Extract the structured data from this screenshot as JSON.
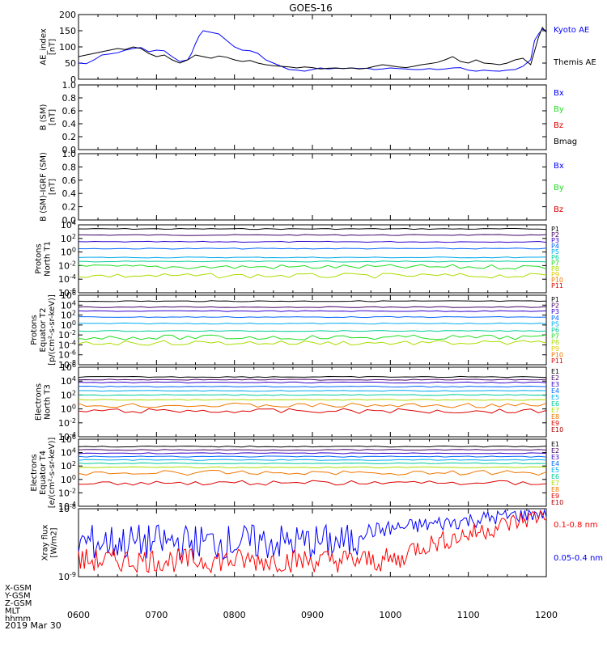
{
  "title": "GOES-16",
  "x_axis": {
    "ticks": [
      "0600",
      "0700",
      "0800",
      "0900",
      "1000",
      "1100",
      "1200"
    ],
    "footer_labels": [
      "X-GSM",
      "Y-GSM",
      "Z-GSM",
      "MLT",
      "hhmm"
    ],
    "date": "2019 Mar 30"
  },
  "colors": {
    "black": "#000000",
    "blue": "#0000ff",
    "green": "#22dd22",
    "red": "#dd0000",
    "p": [
      "#000000",
      "#440066",
      "#3300cc",
      "#0066ff",
      "#00aaee",
      "#00cc99",
      "#22dd22",
      "#aadd00",
      "#ddcc00",
      "#ee7700",
      "#dd0000"
    ]
  },
  "chart_data": [
    {
      "type": "line",
      "panel": "ae",
      "ylabel": "AE_index\n[nT]",
      "ylim": [
        0,
        200
      ],
      "yticks": [
        "0",
        "50",
        "100",
        "150",
        "200"
      ],
      "x_start": 600,
      "x_end": 1200,
      "series": [
        {
          "name": "Kyoto AE",
          "color": "#0000ff",
          "x": [
            600,
            610,
            620,
            630,
            640,
            650,
            660,
            670,
            680,
            690,
            700,
            710,
            720,
            730,
            740,
            745,
            750,
            755,
            760,
            770,
            780,
            790,
            800,
            810,
            820,
            830,
            840,
            850,
            860,
            870,
            880,
            890,
            900,
            910,
            920,
            930,
            940,
            950,
            960,
            970,
            980,
            990,
            1000,
            1010,
            1020,
            1030,
            1040,
            1050,
            1060,
            1070,
            1080,
            1090,
            1100,
            1110,
            1120,
            1130,
            1140,
            1150,
            1160,
            1170,
            1180,
            1185,
            1190,
            1195,
            1200
          ],
          "values": [
            50,
            48,
            60,
            75,
            78,
            82,
            90,
            95,
            98,
            85,
            90,
            88,
            70,
            55,
            60,
            80,
            110,
            135,
            150,
            145,
            140,
            120,
            100,
            90,
            88,
            80,
            60,
            50,
            40,
            30,
            28,
            25,
            30,
            35,
            32,
            34,
            33,
            35,
            33,
            34,
            30,
            32,
            35,
            33,
            32,
            30,
            30,
            33,
            30,
            32,
            35,
            36,
            28,
            25,
            28,
            26,
            25,
            28,
            30,
            40,
            60,
            120,
            140,
            155,
            150
          ]
        },
        {
          "name": "Themis AE",
          "color": "#000000",
          "x": [
            600,
            610,
            620,
            630,
            640,
            650,
            660,
            670,
            680,
            690,
            700,
            710,
            720,
            730,
            740,
            750,
            760,
            770,
            780,
            790,
            800,
            810,
            820,
            830,
            840,
            850,
            860,
            870,
            880,
            890,
            900,
            910,
            920,
            930,
            940,
            950,
            960,
            970,
            980,
            990,
            1000,
            1010,
            1020,
            1030,
            1040,
            1050,
            1060,
            1070,
            1080,
            1090,
            1100,
            1110,
            1120,
            1130,
            1140,
            1150,
            1160,
            1170,
            1180,
            1190,
            1195,
            1200
          ],
          "values": [
            70,
            75,
            80,
            85,
            90,
            95,
            92,
            100,
            95,
            80,
            70,
            75,
            60,
            50,
            60,
            75,
            70,
            65,
            72,
            68,
            60,
            55,
            58,
            50,
            45,
            42,
            40,
            38,
            35,
            38,
            36,
            32,
            34,
            35,
            33,
            35,
            32,
            34,
            40,
            45,
            42,
            38,
            36,
            40,
            45,
            48,
            52,
            60,
            70,
            55,
            50,
            60,
            50,
            48,
            45,
            50,
            60,
            65,
            45,
            130,
            160,
            145
          ]
        }
      ]
    },
    {
      "type": "line",
      "panel": "b_sm",
      "ylabel": "B (SM)\n[nT]",
      "ylim": [
        0,
        1
      ],
      "yticks": [
        "0.0",
        "0.2",
        "0.4",
        "0.6",
        "0.8",
        "1.0"
      ],
      "legend": [
        "Bx",
        "By",
        "Bz",
        "Bmag"
      ],
      "series": []
    },
    {
      "type": "line",
      "panel": "b_igrf",
      "ylabel": "B (SM)-IGRF (SM)\n[nT]",
      "ylim": [
        0,
        1
      ],
      "yticks": [
        "0.0",
        "0.2",
        "0.4",
        "0.6",
        "0.8",
        "1.0"
      ],
      "legend": [
        "Bx",
        "By",
        "Bz"
      ],
      "series": []
    },
    {
      "type": "line",
      "panel": "protons_t1",
      "ylabel": "Protons\nNorth T1",
      "scale": "log",
      "ylim_exp": [
        -6,
        4
      ],
      "yticks": [
        "10^4",
        "10^2",
        "10^0",
        "10^-2",
        "10^-4",
        "10^-6"
      ],
      "legend": [
        "P1",
        "P2",
        "P3",
        "P4",
        "P5",
        "P6",
        "P7",
        "P8",
        "P9",
        "P10",
        "P11"
      ],
      "levels_log10": [
        3.4,
        2.5,
        1.5,
        0.5,
        -0.8,
        -1.4,
        -2.2,
        -3.5
      ]
    },
    {
      "type": "line",
      "panel": "protons_t2",
      "ylabel": "Protons\nEquator T2\n[p/(cm²-s-sr-keV)]",
      "scale": "log",
      "ylim_exp": [
        -8,
        6
      ],
      "yticks": [
        "10^6",
        "10^4",
        "10^2",
        "10^0",
        "10^-2",
        "10^-4",
        "10^-6",
        "10^-8"
      ],
      "legend": [
        "P1",
        "P2",
        "P3",
        "P4",
        "P5",
        "P6",
        "P7",
        "P8",
        "P9",
        "P10",
        "P11"
      ],
      "levels_log10": [
        4.8,
        3.6,
        2.8,
        1.6,
        0.3,
        -1.2,
        -2.5,
        -3.6
      ]
    },
    {
      "type": "line",
      "panel": "electrons_t3",
      "ylabel": "Electrons\nNorth T3",
      "scale": "log",
      "ylim_exp": [
        -4,
        6
      ],
      "yticks": [
        "10^6",
        "10^4",
        "10^2",
        "10^0",
        "10^-2",
        "10^-4"
      ],
      "legend": [
        "E1",
        "E2",
        "E3",
        "E4",
        "E5",
        "E6",
        "E7",
        "E8",
        "E9",
        "E10"
      ],
      "levels_log10": [
        4.6,
        4.2,
        3.8,
        3.2,
        2.6,
        2.0,
        1.3,
        0.5,
        -0.3
      ]
    },
    {
      "type": "line",
      "panel": "electrons_t4",
      "ylabel": "Electrons\nEquator T4\n[e/(cm²-s-sr-keV)]",
      "scale": "log",
      "ylim_exp": [
        -4,
        6
      ],
      "yticks": [
        "10^6",
        "10^4",
        "10^2",
        "10^0",
        "10^-2",
        "10^-4"
      ],
      "legend": [
        "E1",
        "E2",
        "E3",
        "E4",
        "E5",
        "E6",
        "E7",
        "E8",
        "E9",
        "E10"
      ],
      "levels_log10": [
        4.9,
        4.4,
        3.9,
        3.4,
        2.9,
        2.4,
        1.8,
        1.0,
        -0.5
      ]
    },
    {
      "type": "line",
      "panel": "xray",
      "ylabel": "Xray flux\n[W/m2]",
      "scale": "log",
      "ylim_exp": [
        -9,
        -8
      ],
      "yticks": [
        "10^-8",
        "10^-9"
      ],
      "series": [
        {
          "name": "0.1-0.8 nm",
          "color": "#ff0000"
        },
        {
          "name": "0.05-0.4 nm",
          "color": "#0000ff"
        }
      ]
    }
  ]
}
